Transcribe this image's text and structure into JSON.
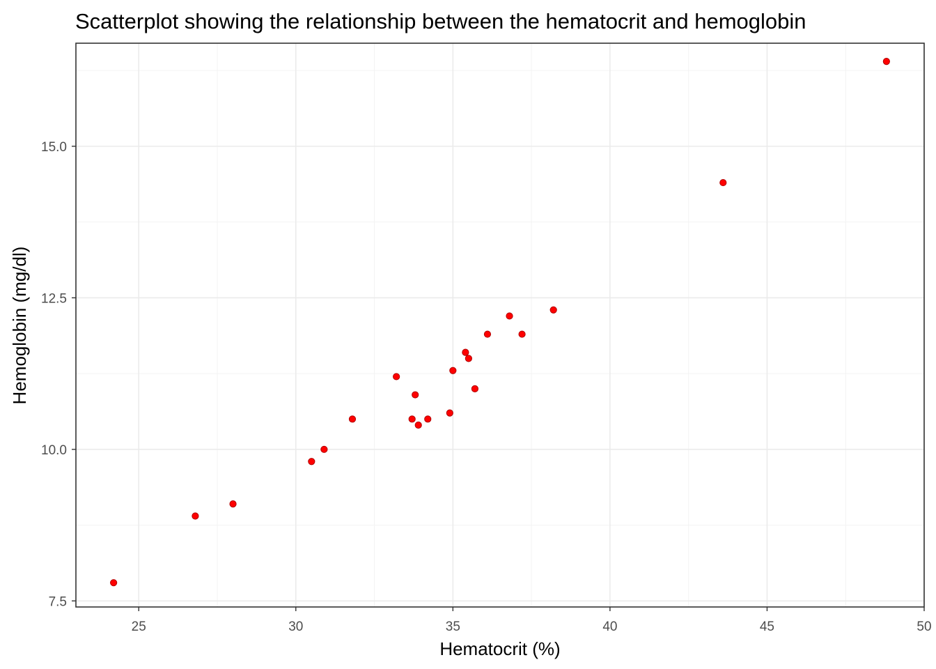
{
  "chart_data": {
    "type": "scatter",
    "title": "Scatterplot showing the relationship between the hematocrit and hemoglobin",
    "xlabel": "Hematocrit (%)",
    "ylabel": "Hemoglobin (mg/dl)",
    "xlim": [
      23,
      50
    ],
    "ylim": [
      7.4,
      16.7
    ],
    "x_ticks": [
      25,
      30,
      35,
      40,
      45,
      50
    ],
    "x_tick_labels": [
      "25",
      "30",
      "35",
      "40",
      "45",
      "50"
    ],
    "y_ticks": [
      7.5,
      10.0,
      12.5,
      15.0
    ],
    "y_tick_labels": [
      "7.5",
      "10.0",
      "12.5",
      "15.0"
    ],
    "grid": true,
    "point_color": "#ff0000",
    "point_edge_color": "#b00000",
    "points": [
      {
        "x": 24.2,
        "y": 7.8
      },
      {
        "x": 26.8,
        "y": 8.9
      },
      {
        "x": 28.0,
        "y": 9.1
      },
      {
        "x": 30.5,
        "y": 9.8
      },
      {
        "x": 30.9,
        "y": 10.0
      },
      {
        "x": 31.8,
        "y": 10.5
      },
      {
        "x": 33.2,
        "y": 11.2
      },
      {
        "x": 33.7,
        "y": 10.5
      },
      {
        "x": 33.8,
        "y": 10.9
      },
      {
        "x": 33.9,
        "y": 10.4
      },
      {
        "x": 34.2,
        "y": 10.5
      },
      {
        "x": 34.9,
        "y": 10.6
      },
      {
        "x": 35.0,
        "y": 11.3
      },
      {
        "x": 35.4,
        "y": 11.6
      },
      {
        "x": 35.5,
        "y": 11.5
      },
      {
        "x": 35.7,
        "y": 11.0
      },
      {
        "x": 36.1,
        "y": 11.9
      },
      {
        "x": 36.8,
        "y": 12.2
      },
      {
        "x": 37.2,
        "y": 11.9
      },
      {
        "x": 38.2,
        "y": 12.3
      },
      {
        "x": 43.6,
        "y": 14.4
      },
      {
        "x": 48.8,
        "y": 16.4
      }
    ]
  }
}
